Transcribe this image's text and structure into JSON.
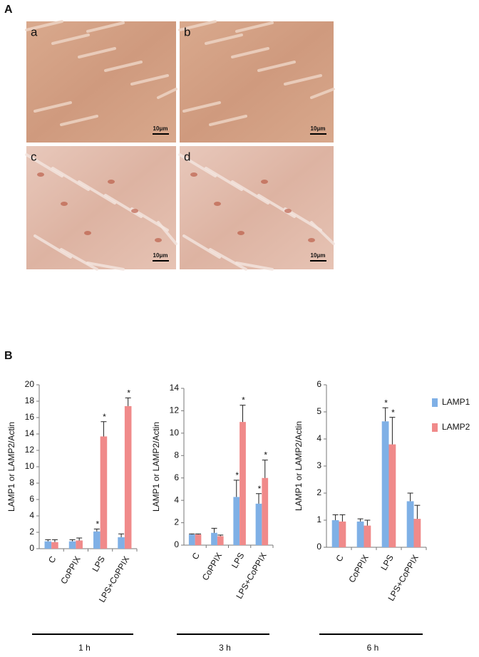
{
  "figure": {
    "panel_labels": [
      "A",
      "B"
    ],
    "micrographs": [
      {
        "label": "a",
        "scale_bar": "10μm"
      },
      {
        "label": "b",
        "scale_bar": "10μm"
      },
      {
        "label": "c",
        "scale_bar": "10μm"
      },
      {
        "label": "d",
        "scale_bar": "10μm"
      }
    ]
  },
  "chart_data": [
    {
      "type": "bar",
      "ylabel": "LAMP1 or LAMP2/Actin",
      "group_label": "1 h",
      "categories": [
        "C",
        "CoPPIX",
        "LPS",
        "LPS+CoPPIX"
      ],
      "ylim": [
        0,
        20
      ],
      "yticks": [
        0,
        2,
        4,
        6,
        8,
        10,
        12,
        14,
        16,
        18,
        20
      ],
      "series": [
        {
          "name": "LAMP1",
          "color": "#7fb0e6",
          "values": [
            0.9,
            0.9,
            2.1,
            1.4
          ],
          "errors": [
            0.2,
            0.2,
            0.3,
            0.4
          ],
          "annotations": [
            null,
            null,
            "*",
            null
          ]
        },
        {
          "name": "LAMP2",
          "color": "#f08a8a",
          "values": [
            0.8,
            1.0,
            13.7,
            17.4
          ],
          "errors": [
            0.3,
            0.3,
            1.8,
            1.0
          ],
          "annotations": [
            null,
            null,
            "*",
            "*"
          ]
        }
      ]
    },
    {
      "type": "bar",
      "ylabel": "LAMP1 or LAMP2/Actin",
      "group_label": "3 h",
      "categories": [
        "C",
        "CoPPIX",
        "LPS",
        "LPS+CoPPIX"
      ],
      "ylim": [
        0,
        14
      ],
      "yticks": [
        0,
        2,
        4,
        6,
        8,
        10,
        12,
        14
      ],
      "series": [
        {
          "name": "LAMP1",
          "color": "#7fb0e6",
          "values": [
            0.95,
            1.1,
            4.3,
            3.7
          ],
          "errors": [
            0.05,
            0.4,
            1.5,
            0.9
          ],
          "annotations": [
            null,
            null,
            "*",
            "*"
          ]
        },
        {
          "name": "LAMP2",
          "color": "#f08a8a",
          "values": [
            0.95,
            0.8,
            11.0,
            6.0
          ],
          "errors": [
            0.05,
            0.1,
            1.5,
            1.6
          ],
          "annotations": [
            null,
            null,
            "*",
            "*"
          ]
        }
      ]
    },
    {
      "type": "bar",
      "ylabel": "LAMP1 or LAMP2/Actin",
      "group_label": "6 h",
      "legend": "right",
      "categories": [
        "C",
        "CoPPIX",
        "LPS",
        "LPS+CoPPIX"
      ],
      "ylim": [
        0,
        6
      ],
      "yticks": [
        0,
        1,
        2,
        3,
        4,
        5,
        6
      ],
      "series": [
        {
          "name": "LAMP1",
          "color": "#7fb0e6",
          "values": [
            1.0,
            0.95,
            4.65,
            1.7
          ],
          "errors": [
            0.2,
            0.1,
            0.5,
            0.3
          ],
          "annotations": [
            null,
            null,
            "*",
            null
          ]
        },
        {
          "name": "LAMP2",
          "color": "#f08a8a",
          "values": [
            0.95,
            0.8,
            3.8,
            1.05
          ],
          "errors": [
            0.25,
            0.2,
            1.0,
            0.5
          ],
          "annotations": [
            null,
            null,
            "*",
            null
          ]
        }
      ]
    }
  ]
}
